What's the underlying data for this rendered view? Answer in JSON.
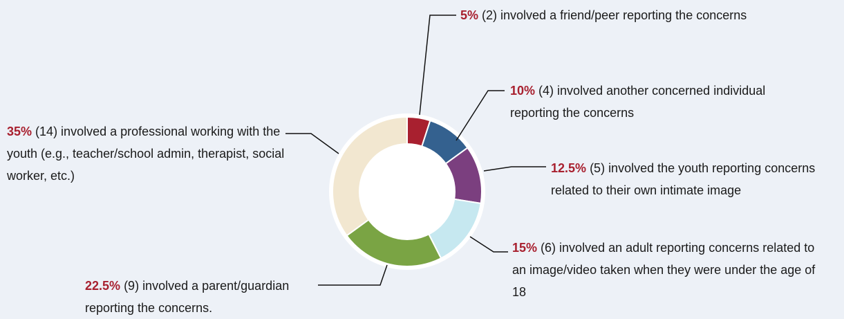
{
  "chart_data": {
    "type": "donut",
    "categories": [
      "(2) involved a friend/peer reporting the concerns",
      "(4) involved another concerned individual reporting the concerns",
      "(5) involved the youth reporting concerns related to their own intimate image",
      "(6) involved an adult reporting concerns related to an image/video taken when they were under the age of 18",
      "(9) involved a parent/guardian reporting the concerns.",
      "(14) involved a professional working with the youth (e.g., teacher/school admin, therapist, social worker, etc.)"
    ],
    "values": [
      5,
      10,
      12.5,
      15,
      22.5,
      35
    ],
    "value_labels": [
      "5%",
      "10%",
      "12.5%",
      "15%",
      "22.5%",
      "35%"
    ],
    "colors": [
      "#a8202f",
      "#34618f",
      "#7b3f7f",
      "#c6e8f0",
      "#7aa444",
      "#f2e7d0"
    ]
  }
}
